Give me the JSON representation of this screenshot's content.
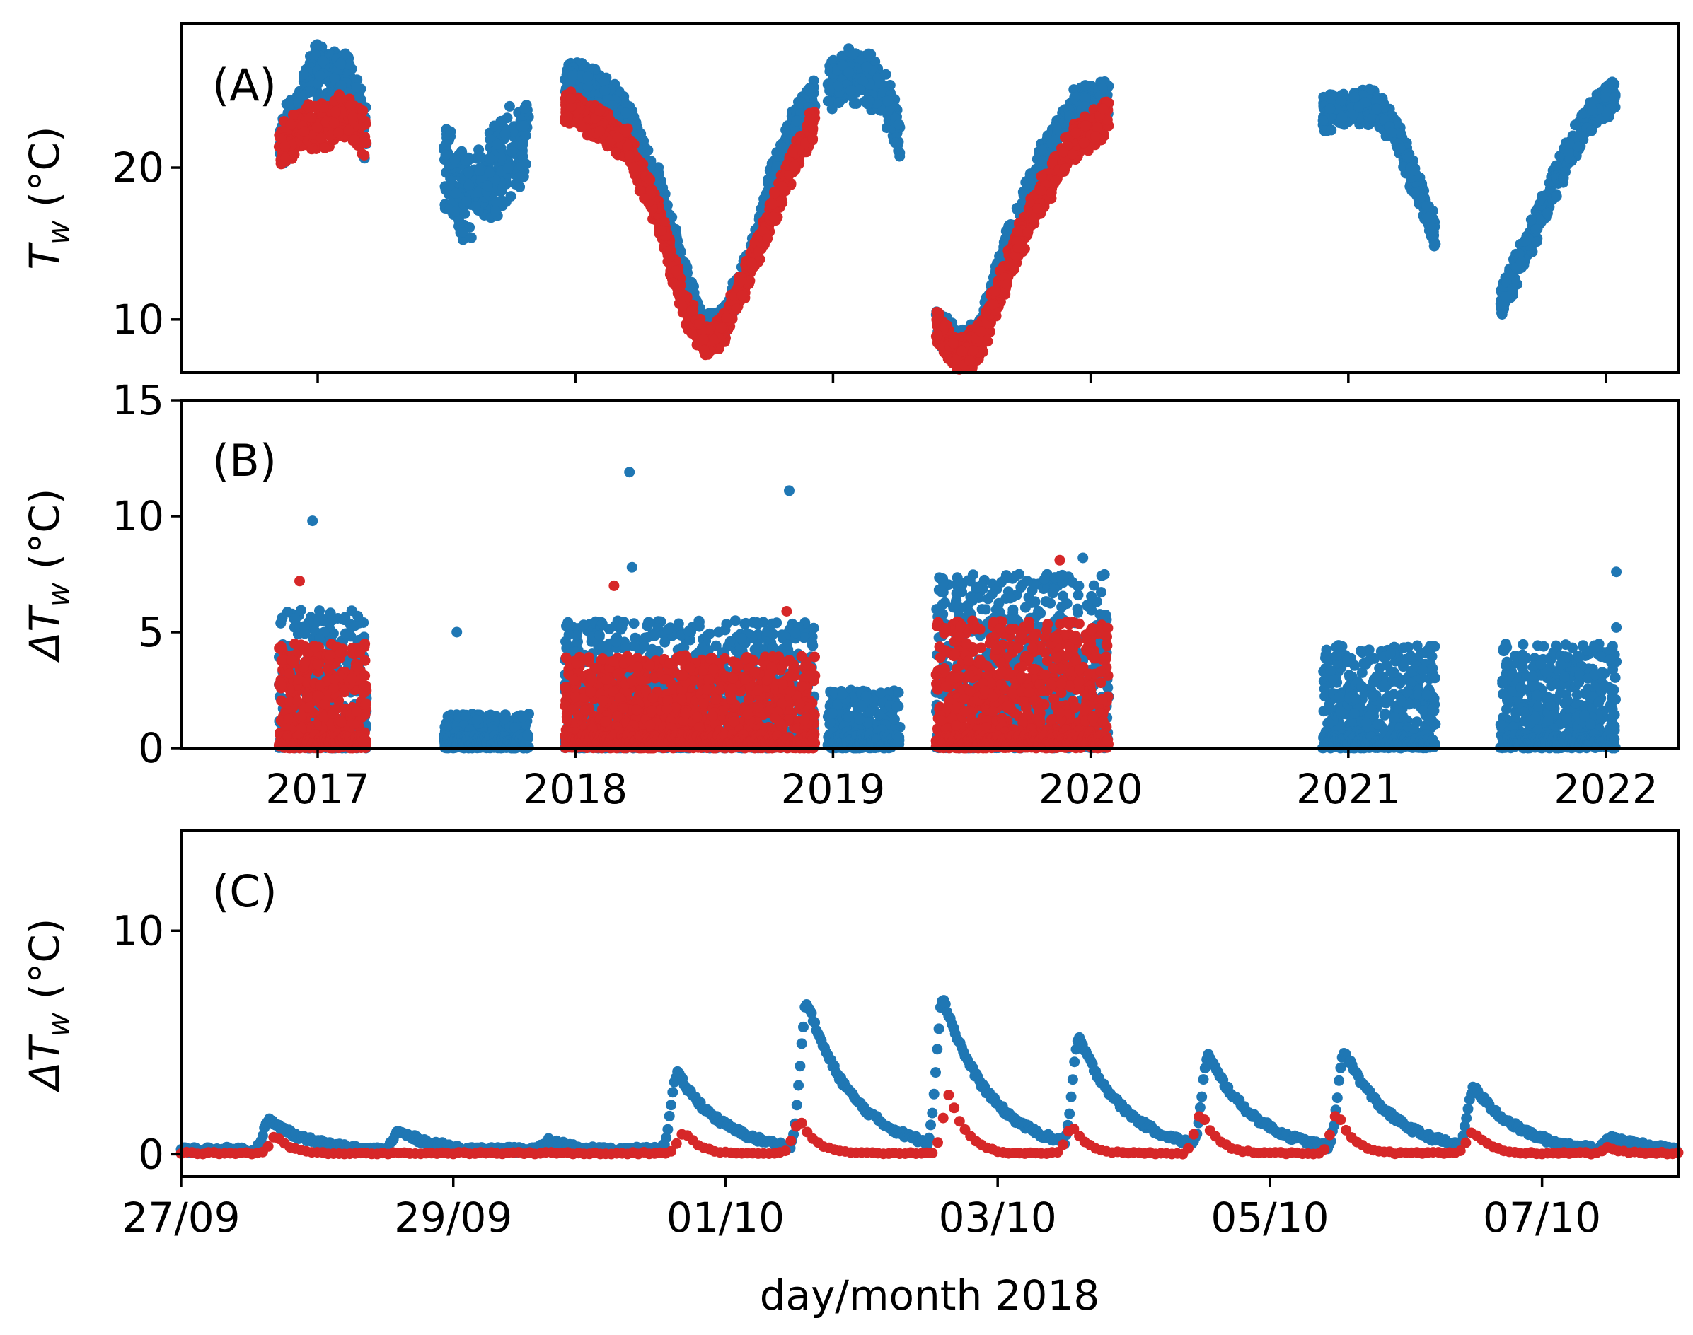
{
  "chart_data": [
    {
      "panel": "A",
      "type": "scatter",
      "panel_label": "(A)",
      "ylabel_base": "T",
      "ylabel_sub": "w",
      "ylabel_unit": " (°C)",
      "y_ticks": [
        10,
        20
      ],
      "ylim": [
        6.5,
        29.5
      ],
      "x_ticks": [
        2017,
        2018,
        2019,
        2020,
        2021,
        2022
      ],
      "xlim": [
        2016.47,
        2022.28
      ],
      "colors": {
        "blue": "#1f77b4",
        "red": "#d62728"
      },
      "series": [
        {
          "name": "blue",
          "color": "#1f77b4",
          "segments": [
            {
              "start": 2016.85,
              "end": 2017.19,
              "points": [
                [
                  2016.85,
                  21.5
                ],
                [
                  2016.93,
                  23.5
                ],
                [
                  2016.99,
                  26.5
                ],
                [
                  2017.05,
                  25.5
                ],
                [
                  2017.12,
                  26.0
                ],
                [
                  2017.19,
                  22.0
                ]
              ],
              "spread": 1.6
            },
            {
              "start": 2017.49,
              "end": 2017.82,
              "points": [
                [
                  2017.49,
                  20.5
                ],
                [
                  2017.56,
                  18.0
                ],
                [
                  2017.65,
                  19.0
                ],
                [
                  2017.72,
                  20.5
                ],
                [
                  2017.82,
                  22.5
                ]
              ],
              "spread": 2.4
            },
            {
              "start": 2017.96,
              "end": 2018.93,
              "points": [
                [
                  2017.96,
                  26.0
                ],
                [
                  2018.08,
                  25.5
                ],
                [
                  2018.2,
                  23.5
                ],
                [
                  2018.32,
                  19.0
                ],
                [
                  2018.42,
                  13.0
                ],
                [
                  2018.5,
                  9.0
                ],
                [
                  2018.58,
                  10.0
                ],
                [
                  2018.68,
                  14.0
                ],
                [
                  2018.76,
                  19.0
                ],
                [
                  2018.85,
                  23.0
                ],
                [
                  2018.93,
                  25.0
                ]
              ],
              "spread": 0.9
            },
            {
              "start": 2018.98,
              "end": 2019.26,
              "points": [
                [
                  2018.98,
                  25.5
                ],
                [
                  2019.06,
                  26.0
                ],
                [
                  2019.13,
                  26.0
                ],
                [
                  2019.2,
                  24.5
                ],
                [
                  2019.26,
                  22.0
                ]
              ],
              "spread": 1.4
            },
            {
              "start": 2019.4,
              "end": 2020.07,
              "points": [
                [
                  2019.4,
                  10.0
                ],
                [
                  2019.49,
                  8.0
                ],
                [
                  2019.57,
                  9.0
                ],
                [
                  2019.68,
                  15.0
                ],
                [
                  2019.8,
                  20.0
                ],
                [
                  2019.93,
                  24.0
                ],
                [
                  2020.07,
                  24.5
                ]
              ],
              "spread": 1.0
            },
            {
              "start": 2020.9,
              "end": 2021.34,
              "points": [
                [
                  2020.9,
                  23.5
                ],
                [
                  2021.0,
                  24.0
                ],
                [
                  2021.1,
                  24.0
                ],
                [
                  2021.18,
                  22.5
                ],
                [
                  2021.26,
                  19.0
                ],
                [
                  2021.34,
                  15.5
                ]
              ],
              "spread": 0.9
            },
            {
              "start": 2021.59,
              "end": 2022.04,
              "points": [
                [
                  2021.59,
                  11.0
                ],
                [
                  2021.7,
                  15.0
                ],
                [
                  2021.8,
                  19.0
                ],
                [
                  2021.92,
                  23.0
                ],
                [
                  2022.04,
                  25.0
                ]
              ],
              "spread": 0.9
            }
          ]
        },
        {
          "name": "red",
          "color": "#d62728",
          "segments": [
            {
              "start": 2016.85,
              "end": 2017.19,
              "points": [
                [
                  2016.85,
                  21.5
                ],
                [
                  2016.95,
                  22.5
                ],
                [
                  2017.05,
                  23.0
                ],
                [
                  2017.12,
                  23.5
                ],
                [
                  2017.19,
                  22.0
                ]
              ],
              "spread": 1.2
            },
            {
              "start": 2017.96,
              "end": 2018.93,
              "points": [
                [
                  2017.96,
                  24.0
                ],
                [
                  2018.08,
                  23.0
                ],
                [
                  2018.2,
                  21.5
                ],
                [
                  2018.32,
                  17.0
                ],
                [
                  2018.42,
                  11.0
                ],
                [
                  2018.5,
                  8.5
                ],
                [
                  2018.58,
                  9.5
                ],
                [
                  2018.68,
                  13.5
                ],
                [
                  2018.78,
                  17.5
                ],
                [
                  2018.86,
                  21.0
                ],
                [
                  2018.93,
                  23.0
                ]
              ],
              "spread": 0.9
            },
            {
              "start": 2019.4,
              "end": 2020.07,
              "points": [
                [
                  2019.4,
                  9.5
                ],
                [
                  2019.49,
                  7.5
                ],
                [
                  2019.57,
                  8.5
                ],
                [
                  2019.68,
                  13.5
                ],
                [
                  2019.8,
                  18.0
                ],
                [
                  2019.93,
                  21.5
                ],
                [
                  2020.07,
                  23.5
                ]
              ],
              "spread": 1.0
            }
          ]
        }
      ]
    },
    {
      "panel": "B",
      "type": "scatter",
      "panel_label": "(B)",
      "ylabel_base": "ΔT",
      "ylabel_sub": "w",
      "ylabel_unit": " (°C)",
      "y_ticks": [
        0,
        5,
        10,
        15
      ],
      "ylim": [
        0,
        15
      ],
      "x_ticks": [
        2017,
        2018,
        2019,
        2020,
        2021,
        2022
      ],
      "x_tick_labels": [
        "2017",
        "2018",
        "2019",
        "2020",
        "2021",
        "2022"
      ],
      "xlim": [
        2016.47,
        2022.28
      ],
      "series": [
        {
          "name": "blue",
          "color": "#1f77b4",
          "segments": [
            {
              "start": 2016.85,
              "end": 2017.19,
              "max": 6.0
            },
            {
              "start": 2017.49,
              "end": 2017.82,
              "max": 1.5
            },
            {
              "start": 2017.96,
              "end": 2018.93,
              "max": 5.5
            },
            {
              "start": 2018.98,
              "end": 2019.26,
              "max": 2.5
            },
            {
              "start": 2019.4,
              "end": 2020.07,
              "max": 7.5
            },
            {
              "start": 2020.9,
              "end": 2021.34,
              "max": 4.5
            },
            {
              "start": 2021.59,
              "end": 2022.04,
              "max": 4.5
            }
          ],
          "outliers": [
            [
              2018.21,
              11.9
            ],
            [
              2018.83,
              11.1
            ],
            [
              2016.98,
              9.8
            ],
            [
              2017.54,
              5.0
            ],
            [
              2022.04,
              7.6
            ],
            [
              2022.04,
              5.2
            ],
            [
              2018.22,
              7.8
            ],
            [
              2019.97,
              8.2
            ]
          ]
        },
        {
          "name": "red",
          "color": "#d62728",
          "segments": [
            {
              "start": 2016.85,
              "end": 2017.19,
              "max": 4.5
            },
            {
              "start": 2017.96,
              "end": 2018.93,
              "max": 4.0
            },
            {
              "start": 2019.4,
              "end": 2020.07,
              "max": 5.5
            }
          ],
          "outliers": [
            [
              2016.93,
              7.2
            ],
            [
              2018.15,
              7.0
            ],
            [
              2019.88,
              8.1
            ],
            [
              2018.82,
              5.9
            ]
          ]
        }
      ]
    },
    {
      "panel": "C",
      "type": "scatter",
      "panel_label": "(C)",
      "ylabel_base": "ΔT",
      "ylabel_sub": "w",
      "ylabel_unit": " (°C)",
      "y_ticks": [
        0,
        10
      ],
      "ylim": [
        -1,
        14.5
      ],
      "x_ticks": [
        0,
        2,
        4,
        6,
        8,
        10
      ],
      "x_tick_labels": [
        "27/09",
        "29/09",
        "01/10",
        "03/10",
        "05/10",
        "07/10"
      ],
      "xlim": [
        0,
        11
      ],
      "xlabel": "day/month 2018",
      "series": [
        {
          "name": "blue",
          "color": "#1f77b4",
          "peaks": [
            [
              0.65,
              1.5
            ],
            [
              1.6,
              1.0
            ],
            [
              2.7,
              0.6
            ],
            [
              3.65,
              3.6
            ],
            [
              4.6,
              6.8
            ],
            [
              5.6,
              7.0
            ],
            [
              6.6,
              5.2
            ],
            [
              7.55,
              4.4
            ],
            [
              8.55,
              4.6
            ],
            [
              9.5,
              3.0
            ],
            [
              10.5,
              0.8
            ]
          ],
          "baseline": 0.2
        },
        {
          "name": "red",
          "color": "#d62728",
          "peaks": [
            [
              0.7,
              0.8
            ],
            [
              3.7,
              1.0
            ],
            [
              4.55,
              1.5
            ],
            [
              5.65,
              2.7
            ],
            [
              6.55,
              1.2
            ],
            [
              7.5,
              1.8
            ],
            [
              8.5,
              1.8
            ],
            [
              9.5,
              1.0
            ],
            [
              10.5,
              0.3
            ]
          ],
          "baseline": 0.05
        }
      ]
    }
  ]
}
